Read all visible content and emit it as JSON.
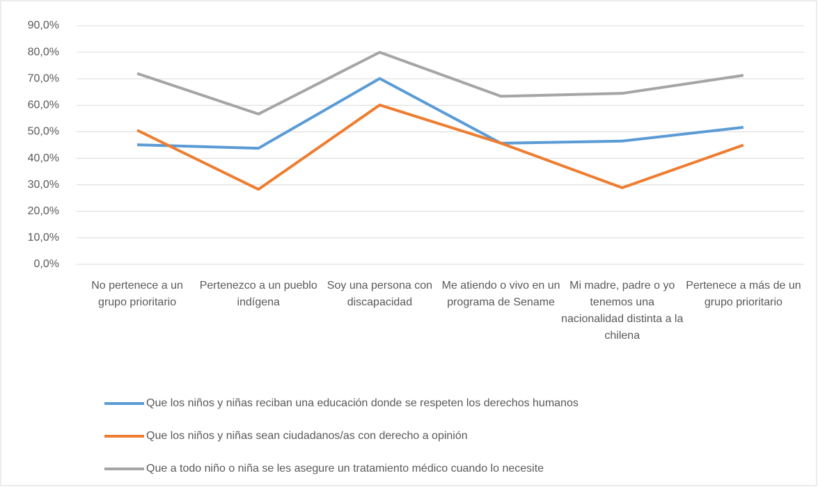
{
  "chart_data": {
    "type": "line",
    "categories": [
      "No pertenece a un grupo prioritario",
      "Pertenezco a un pueblo indígena",
      "Soy una persona con discapacidad",
      "Me atiendo o vivo en un programa de Sename",
      "Mi madre, padre o yo tenemos una nacionalidad distinta a la chilena",
      "Pertenece a más de un grupo prioritario"
    ],
    "series": [
      {
        "name": "Que los niños y niñas reciban una educación donde se respeten los derechos humanos",
        "color": "#5b9bd5",
        "values": [
          45.1,
          43.8,
          70.1,
          45.7,
          46.5,
          51.7
        ]
      },
      {
        "name": "Que los niños y niñas sean ciudadanos/as con derecho a opinión",
        "color": "#ed7d31",
        "values": [
          50.6,
          28.3,
          60.1,
          45.7,
          28.9,
          45.0
        ]
      },
      {
        "name": "Que a todo niño o niña se les asegure un tratamiento médico cuando lo necesite",
        "color": "#a5a5a5",
        "values": [
          72.0,
          56.7,
          80.0,
          63.4,
          64.5,
          71.3
        ]
      }
    ],
    "ylim": [
      0,
      90
    ],
    "yticks": [
      {
        "value": 0,
        "label": "0,0%"
      },
      {
        "value": 10,
        "label": "10,0%"
      },
      {
        "value": 20,
        "label": "20,0%"
      },
      {
        "value": 30,
        "label": "30,0%"
      },
      {
        "value": 40,
        "label": "40,0%"
      },
      {
        "value": 50,
        "label": "50,0%"
      },
      {
        "value": 60,
        "label": "60,0%"
      },
      {
        "value": 70,
        "label": "70,0%"
      },
      {
        "value": 80,
        "label": "80,0%"
      },
      {
        "value": 90,
        "label": "90,0%"
      }
    ],
    "grid": true,
    "legend": "bottom"
  }
}
